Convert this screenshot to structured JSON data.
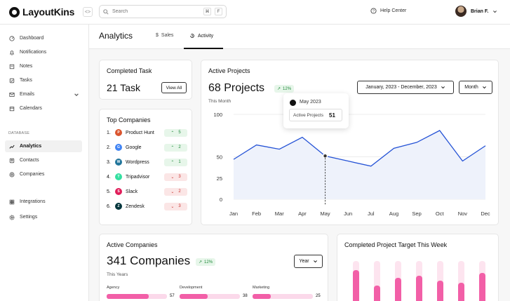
{
  "app": {
    "logo_text": "LayoutKins",
    "collapse_icon": "<>"
  },
  "search": {
    "placeholder": "Search",
    "shortcut_cmd": "⌘",
    "shortcut_key": "F"
  },
  "header": {
    "help_label": "Help Center",
    "user_name": "Brian F."
  },
  "sidebar": {
    "items": [
      {
        "label": "Dashboard",
        "icon": "dashboard-icon"
      },
      {
        "label": "Notifications",
        "icon": "bell-icon"
      },
      {
        "label": "Notes",
        "icon": "note-icon"
      },
      {
        "label": "Tasks",
        "icon": "task-icon"
      },
      {
        "label": "Emails",
        "icon": "mail-icon"
      },
      {
        "label": "Calendars",
        "icon": "calendar-icon"
      }
    ],
    "section_label": "DATABASE",
    "db_items": [
      {
        "label": "Analytics",
        "icon": "chart-icon",
        "active": true
      },
      {
        "label": "Contacts",
        "icon": "contact-icon"
      },
      {
        "label": "Companies",
        "icon": "company-icon"
      }
    ],
    "footer_items": [
      {
        "label": "Integrations",
        "icon": "grid-icon"
      },
      {
        "label": "Settings",
        "icon": "gear-icon"
      }
    ]
  },
  "page": {
    "title": "Analytics",
    "tabs": [
      {
        "label": "Sales",
        "icon": "dollar-icon"
      },
      {
        "label": "Activity",
        "icon": "history-icon",
        "active": true
      }
    ]
  },
  "completed_task": {
    "title": "Completed Task",
    "value": "21 Task",
    "button": "View All"
  },
  "top_companies": {
    "title": "Top Companies",
    "rows": [
      {
        "rank": "1.",
        "name": "Product Hunt",
        "change": "5",
        "trend": "up",
        "color": "#da552f",
        "glyph": "P"
      },
      {
        "rank": "2.",
        "name": "Google",
        "change": "2",
        "trend": "up",
        "color": "#4285f4",
        "glyph": "G"
      },
      {
        "rank": "3.",
        "name": "Wordpress",
        "change": "1",
        "trend": "up",
        "color": "#21759b",
        "glyph": "W"
      },
      {
        "rank": "4.",
        "name": "Tripadvisor",
        "change": "3",
        "trend": "down",
        "color": "#34e0a1",
        "glyph": "T"
      },
      {
        "rank": "5.",
        "name": "Slack",
        "change": "2",
        "trend": "down",
        "color": "#e01e5a",
        "glyph": "S"
      },
      {
        "rank": "6.",
        "name": "Zendesk",
        "change": "3",
        "trend": "down",
        "color": "#03363d",
        "glyph": "Z"
      }
    ]
  },
  "active_projects": {
    "title": "Active Projects",
    "value": "68 Projects",
    "change": "12%",
    "subtitle": "This Month",
    "range_select": "January, 2023 - December, 2023",
    "period_select": "Month",
    "tooltip": {
      "month": "May 2023",
      "label": "Active Projects",
      "value": "51"
    }
  },
  "chart_data": {
    "type": "area",
    "categories": [
      "Jan",
      "Feb",
      "Mar",
      "Apr",
      "May",
      "Jun",
      "Jul",
      "Aug",
      "Sep",
      "Oct",
      "Nov",
      "Dec"
    ],
    "series": [
      {
        "values": [
          47,
          64,
          59,
          73,
          51,
          45,
          39,
          60,
          67,
          81,
          45,
          63
        ]
      }
    ],
    "ylim": [
      0,
      100
    ],
    "yticks": [
      0,
      25,
      50,
      100
    ],
    "highlight_index": 4,
    "colors": {
      "line": "#2553d6",
      "fill": "#eef2fb"
    }
  },
  "active_companies": {
    "title": "Active Companies",
    "value": "341 Companies",
    "change": "12%",
    "subtitle": "This Years",
    "period_select": "Year",
    "bars": [
      {
        "label": "Agency",
        "value": "57",
        "fraction": 0.57
      },
      {
        "label": "Development",
        "value": "38",
        "fraction": 0.38
      },
      {
        "label": "Marketing",
        "value": "25",
        "fraction": 0.25
      }
    ]
  },
  "completed_target": {
    "title": "Completed Project Target This Week",
    "bars": [
      {
        "fraction": 0.82
      },
      {
        "fraction": 0.5
      },
      {
        "fraction": 0.65
      },
      {
        "fraction": 0.7
      },
      {
        "fraction": 0.6
      },
      {
        "fraction": 0.55
      },
      {
        "fraction": 0.75
      }
    ]
  }
}
